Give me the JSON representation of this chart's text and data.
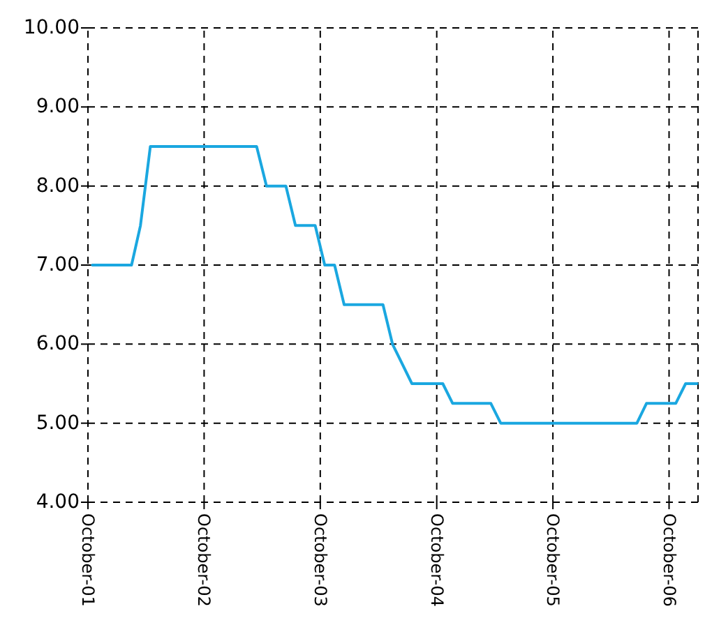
{
  "chart_data": {
    "type": "line",
    "x": [
      "2001-10-15",
      "2002-02-15",
      "2002-03-15",
      "2002-04-15",
      "2003-03-15",
      "2003-04-15",
      "2003-06-15",
      "2003-07-15",
      "2003-09-15",
      "2003-10-15",
      "2003-11-15",
      "2003-12-15",
      "2004-04-15",
      "2004-05-15",
      "2004-07-15",
      "2004-10-20",
      "2004-11-20",
      "2005-03-20",
      "2005-04-20",
      "2006-06-22",
      "2006-07-22",
      "2006-10-22",
      "2006-11-22",
      "2006-12-28"
    ],
    "series": [
      {
        "color": "#1aa7e0",
        "values": [
          7.0,
          7.0,
          7.5,
          8.5,
          8.5,
          8.0,
          8.0,
          7.5,
          7.5,
          7.0,
          7.0,
          6.5,
          6.5,
          6.0,
          5.5,
          5.5,
          5.25,
          5.25,
          5.0,
          5.0,
          5.25,
          5.25,
          5.5,
          5.5
        ]
      }
    ],
    "xlim": [
      "2001-10-01",
      "2006-12-31"
    ],
    "xticks": [
      {
        "value": "2001-10-01",
        "label": "October-01"
      },
      {
        "value": "2002-10-01",
        "label": "October-02"
      },
      {
        "value": "2003-10-01",
        "label": "October-03"
      },
      {
        "value": "2004-10-01",
        "label": "October-04"
      },
      {
        "value": "2005-10-01",
        "label": "October-05"
      },
      {
        "value": "2006-10-01",
        "label": "October-06"
      }
    ],
    "ylim": [
      4,
      10
    ],
    "yticks": [
      {
        "value": 4,
        "label": "4.00"
      },
      {
        "value": 5,
        "label": "5.00"
      },
      {
        "value": 6,
        "label": "6.00"
      },
      {
        "value": 7,
        "label": "7.00"
      },
      {
        "value": 8,
        "label": "8.00"
      },
      {
        "value": 9,
        "label": "9.00"
      },
      {
        "value": 10,
        "label": "10.00"
      }
    ],
    "grid": true,
    "marker": "none",
    "line_style": "solid"
  }
}
